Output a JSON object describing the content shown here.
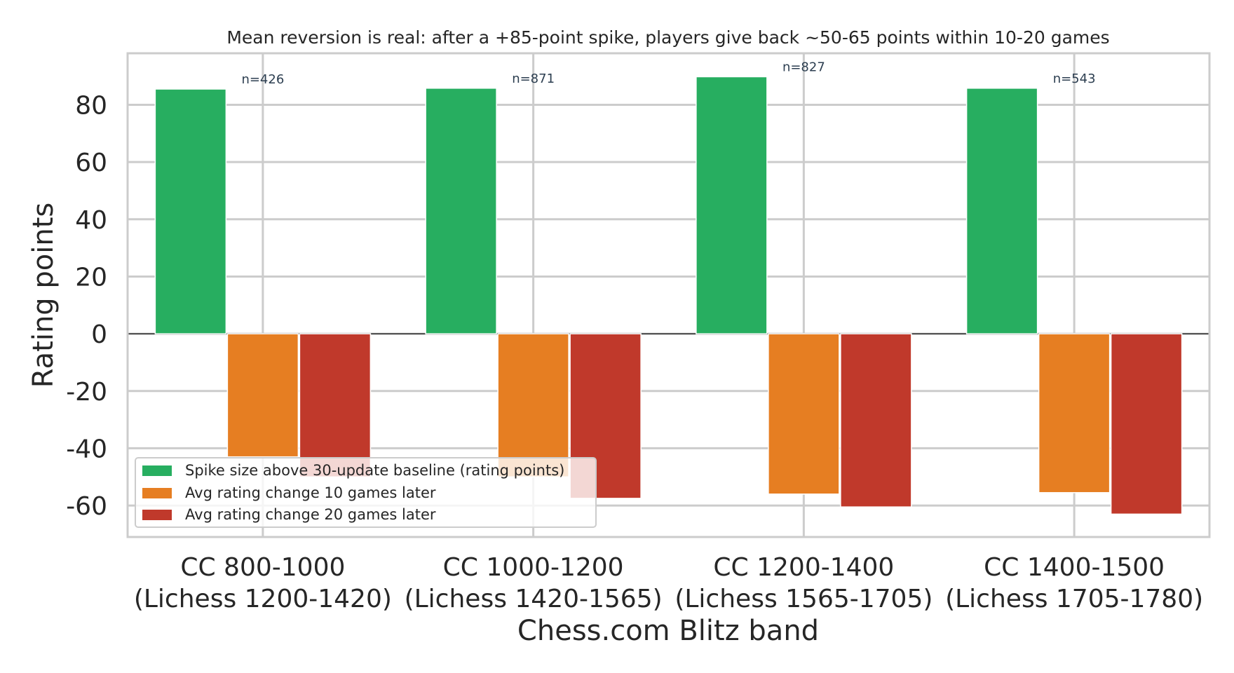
{
  "chart_data": {
    "type": "bar",
    "title": "Mean reversion is real: after a +85-point spike, players give back ~50-65 points within 10-20 games",
    "xlabel": "Chess.com Blitz band",
    "ylabel": "Rating points",
    "categories": [
      [
        "CC 800-1000",
        "(Lichess 1200-1420)"
      ],
      [
        "CC 1000-1200",
        "(Lichess 1420-1565)"
      ],
      [
        "CC 1200-1400",
        "(Lichess 1565-1705)"
      ],
      [
        "CC 1400-1500",
        "(Lichess 1705-1780)"
      ]
    ],
    "series": [
      {
        "name": "Spike size above 30-update baseline (rating points)",
        "color": "#27ae60",
        "values": [
          85.5,
          85.8,
          89.8,
          85.8
        ]
      },
      {
        "name": "Avg rating change 10 games later",
        "color": "#e67e22",
        "values": [
          -43,
          -50,
          -56,
          -55.5
        ]
      },
      {
        "name": "Avg rating change 20 games later",
        "color": "#c0392b",
        "values": [
          -50,
          -57.5,
          -60.5,
          -63
        ]
      }
    ],
    "annotations": [
      "n=426",
      "n=871",
      "n=827",
      "n=543"
    ],
    "yticks": [
      80,
      60,
      40,
      20,
      0,
      -20,
      -40,
      -60
    ],
    "ytick_labels": [
      "80",
      "60",
      "40",
      "20",
      "0",
      "-20",
      "-40",
      "-60"
    ],
    "ylim": [
      -71,
      98
    ],
    "grid": true,
    "legend_position": "lower-left"
  }
}
